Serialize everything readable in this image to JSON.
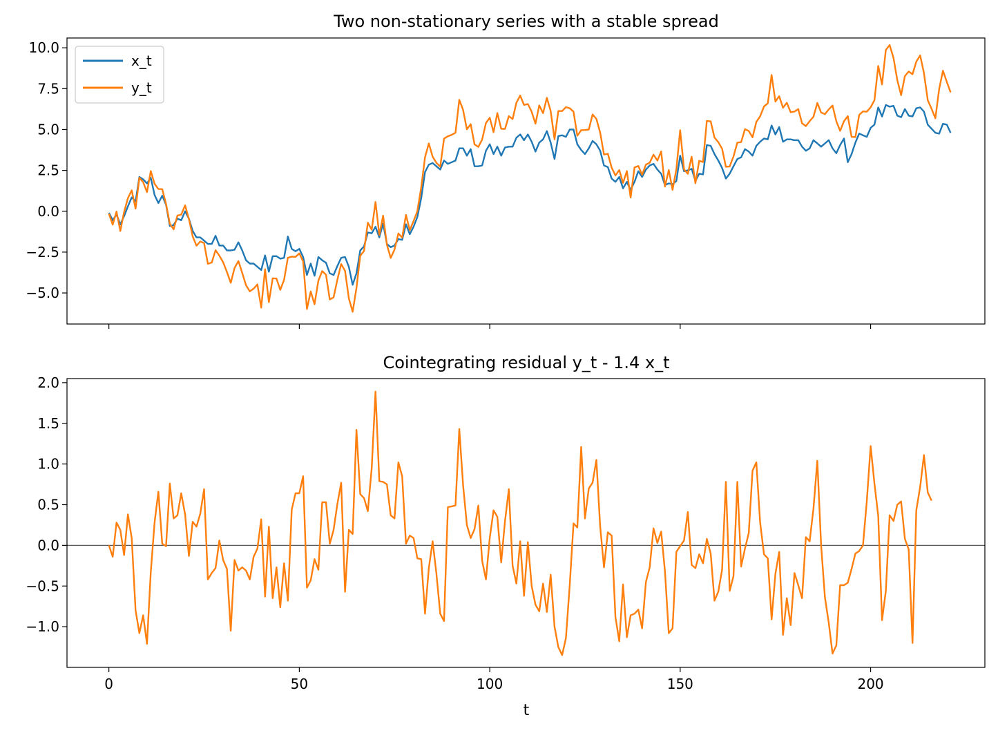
{
  "chart_data": [
    {
      "type": "line",
      "title": "Two non-stationary series with a stable spread",
      "xlabel": "",
      "ylabel": "",
      "xlim": [
        -11,
        230
      ],
      "ylim": [
        -6.9,
        10.6
      ],
      "xticks": [
        0,
        50,
        100,
        150,
        200
      ],
      "yticks": [
        -5.0,
        -2.5,
        0.0,
        2.5,
        5.0,
        7.5,
        10.0
      ],
      "ytick_labels": [
        "−5.0",
        "−2.5",
        "0.0",
        "2.5",
        "5.0",
        "7.5",
        "10.0"
      ],
      "grid": false,
      "legend": "upper left",
      "series": [
        {
          "name": "x_t",
          "color": "#1f77b4",
          "values": [
            -0.1,
            -0.55,
            -0.2,
            -0.8,
            -0.3,
            0.3,
            0.85,
            0.6,
            2.1,
            1.95,
            1.7,
            2.05,
            1.0,
            0.5,
            0.95,
            0.4,
            -0.9,
            -0.85,
            -0.45,
            -0.55,
            0.0,
            -0.45,
            -1.2,
            -1.6,
            -1.6,
            -1.8,
            -2.0,
            -2.0,
            -1.5,
            -2.1,
            -2.1,
            -2.4,
            -2.4,
            -2.35,
            -1.9,
            -2.4,
            -3.0,
            -3.2,
            -3.2,
            -3.4,
            -3.6,
            -2.7,
            -3.7,
            -2.75,
            -2.75,
            -2.9,
            -2.85,
            -1.55,
            -2.3,
            -2.45,
            -2.3,
            -2.8,
            -3.9,
            -3.2,
            -3.95,
            -2.8,
            -3.0,
            -3.15,
            -3.8,
            -3.9,
            -3.35,
            -2.85,
            -2.8,
            -3.4,
            -4.5,
            -3.8,
            -2.4,
            -2.15,
            -1.3,
            -1.35,
            -0.95,
            -1.6,
            -0.75,
            -2.0,
            -2.2,
            -2.1,
            -1.7,
            -1.75,
            -0.8,
            -1.4,
            -0.95,
            -0.35,
            0.8,
            2.4,
            2.85,
            2.95,
            2.75,
            2.55,
            3.1,
            2.9,
            3.0,
            3.1,
            3.85,
            3.85,
            3.4,
            3.8,
            2.75,
            2.75,
            2.8,
            3.7,
            4.1,
            3.5,
            3.95,
            3.4,
            3.9,
            3.95,
            3.95,
            4.5,
            4.7,
            4.35,
            4.7,
            4.25,
            3.65,
            4.2,
            4.4,
            4.9,
            4.2,
            3.2,
            4.6,
            4.65,
            4.55,
            5.0,
            5.0,
            4.1,
            3.75,
            3.5,
            3.85,
            4.3,
            4.1,
            3.7,
            2.8,
            2.7,
            2.0,
            1.8,
            2.1,
            1.4,
            1.8,
            1.3,
            1.8,
            2.45,
            2.1,
            2.55,
            2.8,
            2.9,
            2.55,
            2.3,
            1.6,
            1.7,
            1.65,
            1.85,
            3.4,
            2.45,
            2.5,
            2.6,
            1.85,
            2.3,
            2.25,
            4.05,
            4.0,
            3.5,
            3.1,
            2.65,
            2.0,
            2.3,
            2.75,
            3.2,
            3.3,
            3.8,
            3.65,
            3.4,
            4.0,
            4.25,
            4.45,
            4.4,
            5.25,
            4.7,
            5.15,
            4.25,
            4.4,
            4.4,
            4.35,
            4.35,
            3.95,
            3.7,
            3.85,
            4.35,
            4.15,
            3.95,
            4.15,
            4.35,
            3.85,
            3.55,
            4.05,
            4.45,
            3.0,
            3.5,
            4.2,
            4.75,
            4.65,
            4.55,
            5.1,
            5.3,
            6.35,
            5.8,
            6.5,
            6.4,
            6.45,
            5.85,
            5.75,
            6.25,
            5.85,
            5.8,
            6.3,
            6.35,
            6.1,
            5.3,
            5.05,
            4.8,
            4.75,
            5.35,
            5.3,
            4.8
          ]
        },
        {
          "name": "y_t",
          "color": "#ff7f0e",
          "values": [
            -0.15,
            -0.82,
            -0.02,
            -1.21,
            -0.04,
            0.8,
            1.28,
            0.16,
            2.05,
            1.78,
            1.17,
            2.46,
            1.68,
            1.36,
            1.35,
            0.45,
            -0.77,
            -1.11,
            -0.26,
            -0.21,
            0.36,
            -0.47,
            -1.54,
            -2.11,
            -1.85,
            -1.95,
            -3.22,
            -3.14,
            -2.38,
            -2.72,
            -3.12,
            -3.72,
            -4.38,
            -3.47,
            -3.05,
            -3.77,
            -4.53,
            -4.9,
            -4.74,
            -4.48,
            -5.9,
            -3.55,
            -5.56,
            -4.1,
            -4.12,
            -4.81,
            -4.2,
            -2.85,
            -2.78,
            -2.79,
            -2.58,
            -3.07,
            -5.98,
            -4.91,
            -5.69,
            -4.24,
            -3.66,
            -3.88,
            -5.4,
            -5.27,
            -4.18,
            -3.23,
            -3.65,
            -5.33,
            -6.15,
            -4.7,
            -2.73,
            -2.43,
            -0.7,
            -1.13,
            0.57,
            -1.45,
            -0.27,
            -2.05,
            -2.86,
            -2.35,
            -1.36,
            -1.61,
            -0.22,
            -1.16,
            -0.6,
            0.01,
            1.47,
            3.31,
            4.15,
            3.34,
            2.96,
            2.73,
            4.44,
            4.59,
            4.68,
            4.8,
            6.82,
            6.2,
            5.01,
            5.33,
            4.09,
            3.94,
            4.39,
            5.4,
            5.72,
            4.84,
            6.01,
            5.04,
            5.04,
            5.82,
            5.64,
            6.64,
            7.08,
            6.51,
            6.56,
            6.09,
            5.36,
            6.48,
            6.0,
            6.94,
            6.13,
            4.4,
            6.13,
            6.13,
            6.37,
            6.3,
            6.09,
            4.62,
            4.96,
            4.97,
            5.0,
            5.92,
            5.65,
            4.81,
            3.47,
            3.52,
            2.67,
            2.19,
            2.52,
            1.73,
            2.46,
            0.84,
            2.68,
            2.77,
            2.23,
            2.85,
            2.97,
            3.46,
            3.1,
            3.66,
            1.51,
            2.52,
            1.31,
            2.58,
            4.96,
            2.57,
            2.29,
            3.34,
            1.71,
            3.09,
            3.01,
            5.53,
            5.5,
            4.51,
            4.23,
            3.83,
            2.72,
            2.74,
            3.35,
            4.2,
            4.23,
            5.02,
            4.91,
            4.52,
            5.47,
            5.81,
            6.41,
            6.6,
            8.34,
            6.71,
            7.04,
            6.33,
            6.64,
            6.06,
            6.1,
            6.25,
            5.38,
            5.21,
            5.51,
            5.78,
            6.63,
            6.04,
            5.94,
            6.23,
            6.47,
            5.51,
            4.92,
            5.51,
            5.82,
            4.55,
            4.54,
            5.89,
            6.11,
            6.09,
            6.36,
            6.79,
            8.89,
            7.76,
            9.87,
            10.17,
            9.38,
            8.02,
            7.1,
            8.27,
            8.55,
            8.38,
            9.15,
            9.54,
            8.45,
            6.79,
            6.27,
            5.69,
            7.47,
            8.6,
            7.91,
            7.27
          ]
        }
      ]
    },
    {
      "type": "line",
      "title": "Cointegrating residual y_t - 1.4 x_t",
      "xlabel": "t",
      "ylabel": "",
      "xlim": [
        -11,
        230
      ],
      "ylim": [
        -1.5,
        2.05
      ],
      "xticks": [
        0,
        50,
        100,
        150,
        200
      ],
      "yticks": [
        -1.0,
        -0.5,
        0.0,
        0.5,
        1.0,
        1.5,
        2.0
      ],
      "ytick_labels": [
        "−1.0",
        "−0.5",
        "0.0",
        "0.5",
        "1.0",
        "1.5",
        "2.0"
      ],
      "grid": false,
      "hline": {
        "y": 0.0,
        "color": "#555555"
      },
      "series": [
        {
          "name": "",
          "color": "#ff7f0e",
          "values": [
            0.0,
            -0.14,
            0.28,
            0.19,
            -0.12,
            0.38,
            0.09,
            -0.8,
            -1.08,
            -0.86,
            -1.21,
            -0.33,
            0.28,
            0.66,
            0.02,
            -0.01,
            0.76,
            0.33,
            0.37,
            0.64,
            0.38,
            -0.13,
            0.29,
            0.23,
            0.39,
            0.69,
            -0.42,
            -0.34,
            -0.28,
            0.06,
            -0.18,
            -0.29,
            -1.05,
            -0.18,
            -0.31,
            -0.27,
            -0.31,
            -0.42,
            -0.14,
            -0.04,
            0.32,
            -0.63,
            0.23,
            -0.65,
            -0.27,
            -0.76,
            -0.22,
            -0.68,
            0.44,
            0.64,
            0.64,
            0.85,
            -0.52,
            -0.43,
            -0.17,
            -0.3,
            0.53,
            0.53,
            0.02,
            0.19,
            0.51,
            0.77,
            -0.57,
            0.19,
            0.14,
            1.42,
            0.63,
            0.58,
            0.42,
            0.95,
            1.89,
            0.79,
            0.78,
            0.75,
            0.37,
            0.33,
            1.02,
            0.85,
            0.02,
            0.12,
            0.09,
            -0.16,
            -0.17,
            -0.84,
            -0.28,
            0.05,
            -0.35,
            -0.84,
            -0.93,
            0.47,
            0.48,
            0.49,
            1.43,
            0.74,
            0.25,
            0.09,
            0.2,
            0.49,
            -0.19,
            -0.42,
            0.09,
            0.43,
            0.35,
            -0.21,
            0.3,
            0.69,
            -0.25,
            -0.47,
            0.05,
            -0.62,
            0.04,
            -0.5,
            -0.73,
            -0.81,
            -0.47,
            -0.82,
            -0.36,
            -1.0,
            -1.25,
            -1.35,
            -1.14,
            -0.49,
            0.27,
            0.22,
            1.21,
            0.33,
            0.7,
            0.77,
            1.05,
            0.23,
            -0.27,
            0.16,
            0.12,
            -0.88,
            -1.18,
            -0.48,
            -1.13,
            -0.86,
            -0.84,
            -0.79,
            -1.02,
            -0.45,
            -0.27,
            0.21,
            0.03,
            0.17,
            -0.32,
            -1.08,
            -1.02,
            -0.08,
            -0.01,
            0.06,
            0.41,
            -0.24,
            -0.28,
            -0.11,
            -0.22,
            0.08,
            -0.1,
            -0.68,
            -0.57,
            -0.3,
            0.78,
            -0.56,
            -0.38,
            0.78,
            -0.26,
            -0.04,
            0.15,
            0.92,
            1.02,
            0.28,
            -0.11,
            -0.16,
            -0.91,
            -0.35,
            -0.08,
            -1.1,
            -0.65,
            -0.98,
            -0.34,
            -0.49,
            -0.65,
            0.1,
            0.05,
            0.45,
            1.04,
            0.0,
            -0.64,
            -0.95,
            -1.33,
            -1.23,
            -0.49,
            -0.49,
            -0.46,
            -0.29,
            -0.1,
            -0.07,
            0.0,
            0.54,
            1.22,
            0.76,
            0.36,
            -0.92,
            -0.56,
            0.37,
            0.3,
            0.5,
            0.54,
            0.08,
            -0.05,
            -1.2,
            0.43,
            0.72,
            1.11,
            0.65,
            0.55
          ]
        }
      ]
    }
  ]
}
